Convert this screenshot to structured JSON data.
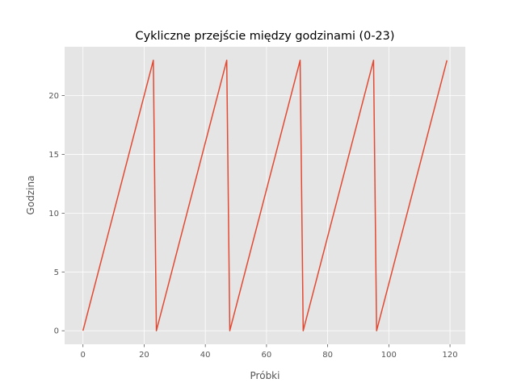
{
  "chart_data": {
    "type": "line",
    "title": "Cykliczne przejście między godzinami (0-23)",
    "xlabel": "Próbki",
    "ylabel": "Godzina",
    "xlim": [
      -6,
      125
    ],
    "ylim": [
      -1.15,
      24.15
    ],
    "x_ticks": [
      "0",
      "20",
      "40",
      "60",
      "80",
      "100",
      "120"
    ],
    "y_ticks": [
      "0",
      "5",
      "10",
      "15",
      "20"
    ],
    "grid": true,
    "x": [
      0,
      23,
      24,
      47,
      48,
      71,
      72,
      95,
      96,
      119
    ],
    "series": [
      {
        "values": [
          0,
          23,
          0,
          23,
          0,
          23,
          0,
          23,
          0,
          23
        ],
        "color": "#E24A33"
      }
    ],
    "colors": {
      "background": "#E5E5E5",
      "grid": "#FFFFFF",
      "text": "#555555"
    }
  }
}
